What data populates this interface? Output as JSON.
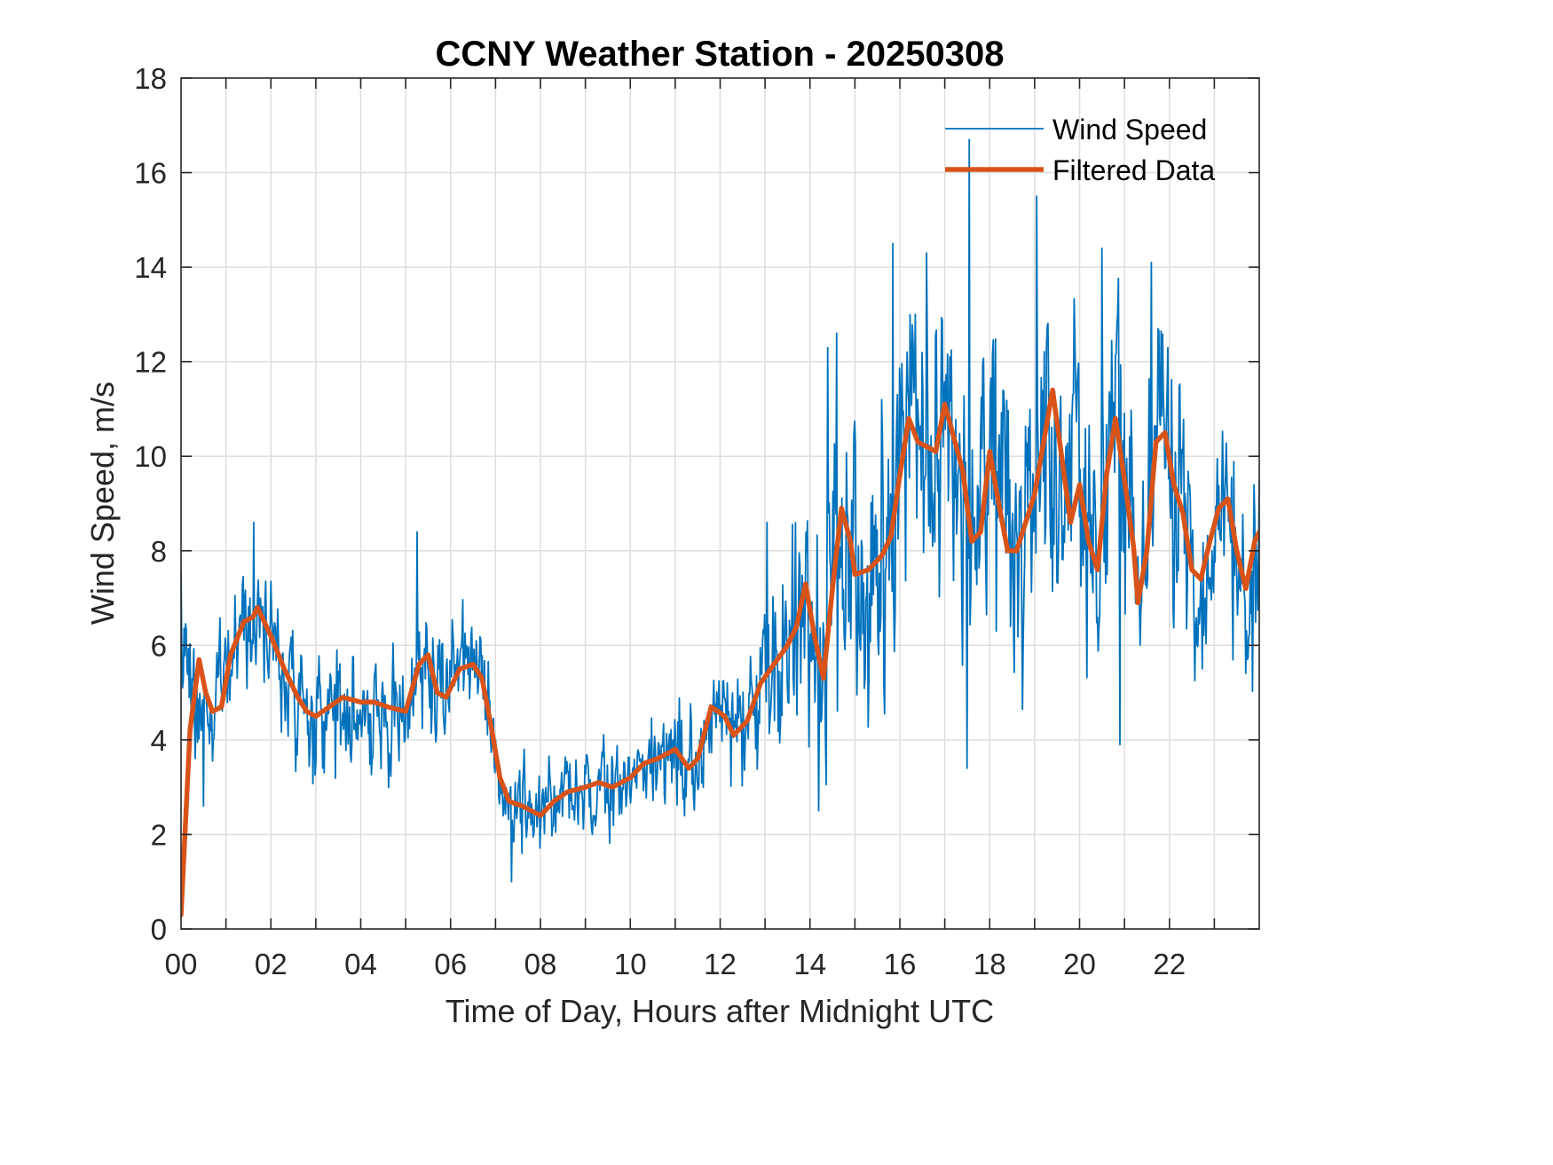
{
  "chart_data": {
    "type": "line",
    "title": "CCNY Weather Station - 20250308",
    "xlabel": "Time of Day, Hours after Midnight UTC",
    "ylabel": "Wind Speed, m/s",
    "xlim": [
      0,
      24
    ],
    "ylim": [
      0,
      18
    ],
    "grid": true,
    "legend_position": "top-right",
    "x_ticks": [
      0,
      2,
      4,
      6,
      8,
      10,
      12,
      14,
      16,
      18,
      20,
      22
    ],
    "x_tick_labels": [
      "00",
      "02",
      "04",
      "06",
      "08",
      "10",
      "12",
      "14",
      "16",
      "18",
      "20",
      "22"
    ],
    "x_minor_grid_step_hours": 1,
    "y_ticks": [
      0,
      2,
      4,
      6,
      8,
      10,
      12,
      14,
      16,
      18
    ],
    "y_tick_labels": [
      "0",
      "2",
      "4",
      "6",
      "8",
      "10",
      "12",
      "14",
      "16",
      "18"
    ],
    "series": [
      {
        "name": "Wind Speed",
        "color": "#0072BD",
        "style": "thin",
        "description": "raw 1-minute wind speed, noisy; envelope given by the filtered curve plus noise amplitude by hour",
        "noise_amplitude_by_hour": [
          [
            0,
            1.6
          ],
          [
            2,
            1.3
          ],
          [
            5,
            1.5
          ],
          [
            7,
            1.1
          ],
          [
            9,
            1.0
          ],
          [
            12,
            1.3
          ],
          [
            13.5,
            2.4
          ],
          [
            14.3,
            3.2
          ],
          [
            16,
            3.4
          ],
          [
            17.5,
            3.4
          ],
          [
            19.2,
            3.4
          ],
          [
            21,
            3.1
          ],
          [
            23,
            2.4
          ],
          [
            24,
            2.2
          ]
        ],
        "notable_peaks": [
          {
            "x": 0.0,
            "y": 7.6
          },
          {
            "x": 1.62,
            "y": 8.6
          },
          {
            "x": 5.25,
            "y": 8.4
          },
          {
            "x": 13.05,
            "y": 8.6
          },
          {
            "x": 14.4,
            "y": 12.3
          },
          {
            "x": 14.6,
            "y": 12.6
          },
          {
            "x": 15.85,
            "y": 14.5
          },
          {
            "x": 16.6,
            "y": 14.3
          },
          {
            "x": 17.55,
            "y": 16.7
          },
          {
            "x": 19.05,
            "y": 15.5
          },
          {
            "x": 20.5,
            "y": 14.4
          },
          {
            "x": 21.6,
            "y": 14.1
          }
        ],
        "notable_troughs": [
          {
            "x": 0.5,
            "y": 2.6
          },
          {
            "x": 7.35,
            "y": 1.0
          },
          {
            "x": 14.2,
            "y": 2.5
          },
          {
            "x": 17.5,
            "y": 3.4
          },
          {
            "x": 20.9,
            "y": 3.9
          }
        ]
      },
      {
        "name": "Filtered Data",
        "color": "#D95319",
        "style": "thick",
        "points": [
          [
            0,
            0.3
          ],
          [
            0.2,
            4.2
          ],
          [
            0.4,
            5.7
          ],
          [
            0.55,
            5.0
          ],
          [
            0.7,
            4.6
          ],
          [
            0.9,
            4.7
          ],
          [
            1.1,
            5.8
          ],
          [
            1.4,
            6.5
          ],
          [
            1.6,
            6.6
          ],
          [
            1.7,
            6.8
          ],
          [
            2.0,
            6.2
          ],
          [
            2.3,
            5.5
          ],
          [
            2.6,
            4.9
          ],
          [
            2.8,
            4.6
          ],
          [
            3.0,
            4.5
          ],
          [
            3.3,
            4.7
          ],
          [
            3.6,
            4.9
          ],
          [
            4.0,
            4.8
          ],
          [
            4.3,
            4.8
          ],
          [
            4.6,
            4.7
          ],
          [
            5.0,
            4.6
          ],
          [
            5.3,
            5.6
          ],
          [
            5.5,
            5.8
          ],
          [
            5.7,
            5.0
          ],
          [
            5.9,
            4.9
          ],
          [
            6.2,
            5.5
          ],
          [
            6.5,
            5.6
          ],
          [
            6.7,
            5.3
          ],
          [
            6.9,
            4.3
          ],
          [
            7.1,
            3.2
          ],
          [
            7.3,
            2.7
          ],
          [
            7.6,
            2.6
          ],
          [
            8.0,
            2.4
          ],
          [
            8.3,
            2.7
          ],
          [
            8.6,
            2.9
          ],
          [
            9.0,
            3.0
          ],
          [
            9.3,
            3.1
          ],
          [
            9.6,
            3.0
          ],
          [
            10.0,
            3.2
          ],
          [
            10.3,
            3.5
          ],
          [
            10.6,
            3.6
          ],
          [
            11.0,
            3.8
          ],
          [
            11.3,
            3.4
          ],
          [
            11.5,
            3.6
          ],
          [
            11.8,
            4.7
          ],
          [
            12.1,
            4.5
          ],
          [
            12.3,
            4.1
          ],
          [
            12.6,
            4.4
          ],
          [
            12.9,
            5.2
          ],
          [
            13.2,
            5.6
          ],
          [
            13.5,
            6.0
          ],
          [
            13.7,
            6.4
          ],
          [
            13.9,
            7.3
          ],
          [
            14.1,
            6.2
          ],
          [
            14.3,
            5.3
          ],
          [
            14.5,
            7.2
          ],
          [
            14.7,
            8.9
          ],
          [
            14.9,
            8.2
          ],
          [
            15.0,
            7.5
          ],
          [
            15.3,
            7.6
          ],
          [
            15.6,
            7.9
          ],
          [
            15.8,
            8.3
          ],
          [
            16.0,
            9.6
          ],
          [
            16.2,
            10.8
          ],
          [
            16.4,
            10.3
          ],
          [
            16.6,
            10.2
          ],
          [
            16.8,
            10.1
          ],
          [
            17.0,
            11.1
          ],
          [
            17.2,
            10.4
          ],
          [
            17.4,
            9.7
          ],
          [
            17.6,
            8.2
          ],
          [
            17.8,
            8.4
          ],
          [
            18.0,
            10.1
          ],
          [
            18.2,
            9.0
          ],
          [
            18.4,
            8.0
          ],
          [
            18.6,
            8.0
          ],
          [
            18.8,
            8.6
          ],
          [
            19.0,
            9.2
          ],
          [
            19.2,
            10.3
          ],
          [
            19.4,
            11.4
          ],
          [
            19.6,
            10.0
          ],
          [
            19.8,
            8.6
          ],
          [
            20.0,
            9.4
          ],
          [
            20.2,
            8.2
          ],
          [
            20.4,
            7.6
          ],
          [
            20.6,
            9.6
          ],
          [
            20.8,
            10.8
          ],
          [
            21.0,
            9.5
          ],
          [
            21.2,
            8.1
          ],
          [
            21.3,
            6.9
          ],
          [
            21.5,
            8.0
          ],
          [
            21.7,
            10.3
          ],
          [
            21.9,
            10.5
          ],
          [
            22.1,
            9.4
          ],
          [
            22.3,
            8.8
          ],
          [
            22.5,
            7.6
          ],
          [
            22.7,
            7.4
          ],
          [
            22.9,
            8.2
          ],
          [
            23.1,
            8.9
          ],
          [
            23.3,
            9.1
          ],
          [
            23.5,
            8.0
          ],
          [
            23.7,
            7.2
          ],
          [
            23.9,
            8.2
          ],
          [
            24.0,
            8.4
          ]
        ]
      }
    ]
  }
}
